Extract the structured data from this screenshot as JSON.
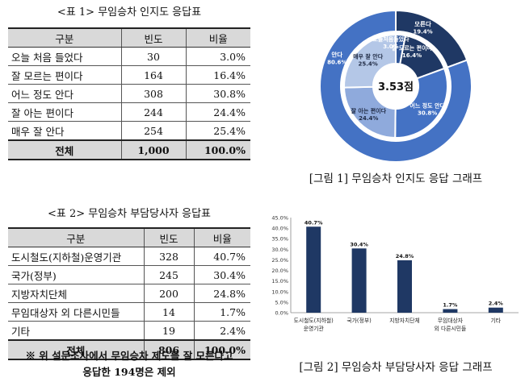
{
  "table1": {
    "caption": "<표 1> 무임승차 인지도 응답표",
    "headers": [
      "구분",
      "빈도",
      "비율"
    ],
    "rows": [
      {
        "label": "오늘 처음 들었다",
        "freq": "30",
        "ratio": "3.0%"
      },
      {
        "label": "잘 모르는 편이다",
        "freq": "164",
        "ratio": "16.4%"
      },
      {
        "label": "어느 정도 안다",
        "freq": "308",
        "ratio": "30.8%"
      },
      {
        "label": "잘 아는 편이다",
        "freq": "244",
        "ratio": "24.4%"
      },
      {
        "label": "매우 잘 안다",
        "freq": "254",
        "ratio": "25.4%"
      }
    ],
    "total": {
      "label": "전체",
      "freq": "1,000",
      "ratio": "100.0%"
    }
  },
  "table2": {
    "caption": "<표 2> 무임승차 부담당사자 응답표",
    "headers": [
      "구분",
      "빈도",
      "비율"
    ],
    "rows": [
      {
        "label": "도시철도(지하철)운영기관",
        "freq": "328",
        "ratio": "40.7%"
      },
      {
        "label": "국가(정부)",
        "freq": "245",
        "ratio": "30.4%"
      },
      {
        "label": "지방자치단체",
        "freq": "200",
        "ratio": "24.8%"
      },
      {
        "label": "무임대상자 외 다른시민들",
        "freq": "14",
        "ratio": "1.7%"
      },
      {
        "label": "기타",
        "freq": "19",
        "ratio": "2.4%"
      }
    ],
    "total": {
      "label": "전체",
      "freq": "806",
      "ratio": "100.0%"
    },
    "note_line1": "※ 위 설문조사에서 무임승차 제도를 잘 모른다고",
    "note_line2": "응답한 194명은 제외"
  },
  "figure1": {
    "caption": "[그림 1] 무임승차 인지도 응답 그래프"
  },
  "figure2": {
    "caption": "[그림 2] 무임승차 부담당사자 응답 그래프"
  },
  "chart_data": [
    {
      "type": "pie",
      "center_label": "3.53점",
      "outer": [
        {
          "label": "모른다",
          "pct": "19.4%",
          "value": 19.4,
          "color": "#1f3864"
        },
        {
          "label": "안다",
          "pct": "80.6%",
          "value": 80.6,
          "color": "#4472c4"
        }
      ],
      "inner": [
        {
          "label": "오늘처음들었다",
          "pct": "3.0%",
          "value": 3.0,
          "color": "#2f5597"
        },
        {
          "label": "잘 모르는 편이다",
          "pct": "16.4%",
          "value": 16.4,
          "color": "#1f3864"
        },
        {
          "label": "어느 정도 안다",
          "pct": "30.8%",
          "value": 30.8,
          "color": "#4472c4"
        },
        {
          "label": "잘 아는 편이다",
          "pct": "24.4%",
          "value": 24.4,
          "color": "#8faadc"
        },
        {
          "label": "매우 잘 안다",
          "pct": "25.4%",
          "value": 25.4,
          "color": "#b4c7e7"
        }
      ]
    },
    {
      "type": "bar",
      "categories": [
        "도시철도(지하철) 운영기관",
        "국가(정부)",
        "지방자치단체",
        "무임대상자 외 다른시민들",
        "기타"
      ],
      "category_lines": [
        [
          "도시철도(지하철)",
          "운영기관"
        ],
        [
          "국가(정부)"
        ],
        [
          "지방자치단체"
        ],
        [
          "무임대상자",
          "외 다른시민들"
        ],
        [
          "기타"
        ]
      ],
      "values": [
        40.7,
        30.4,
        24.8,
        1.7,
        2.4
      ],
      "data_labels": [
        "40.7%",
        "30.4%",
        "24.8%",
        "1.7%",
        "2.4%"
      ],
      "y_ticks": [
        "0.0%",
        "5.0%",
        "10.0%",
        "15.0%",
        "20.0%",
        "25.0%",
        "30.0%",
        "35.0%",
        "40.0%",
        "45.0%"
      ],
      "ylim": [
        0,
        45
      ],
      "grid": false,
      "bar_color": "#1f3864"
    }
  ]
}
